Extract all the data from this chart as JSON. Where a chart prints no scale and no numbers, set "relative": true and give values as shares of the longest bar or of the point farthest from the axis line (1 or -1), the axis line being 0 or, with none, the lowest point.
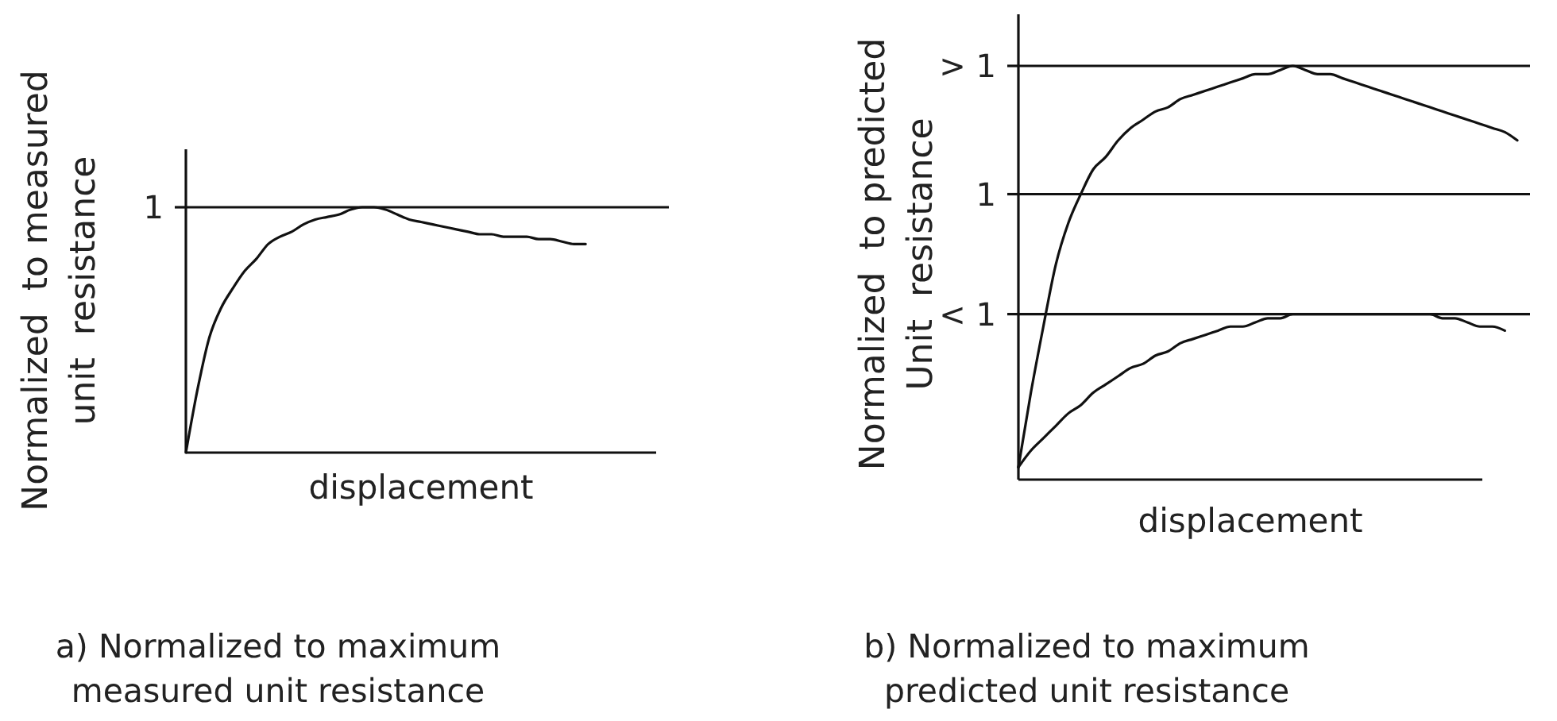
{
  "chart_data": [
    {
      "type": "line",
      "relative": true,
      "xlabel": "displacement",
      "ylabel": "Normalized  to measured\nunit  resistance",
      "categories": [
        null,
        null,
        null,
        null,
        null,
        null,
        null,
        null,
        null,
        null,
        null,
        null,
        null,
        null,
        null,
        null,
        null,
        null,
        null,
        null,
        null,
        null,
        null,
        null,
        null,
        null,
        null,
        null,
        null,
        null,
        null,
        null,
        null,
        null,
        null,
        null,
        null,
        null,
        null,
        null,
        null
      ],
      "series": [
        {
          "color": "#111111",
          "values": [
            0,
            0.26,
            0.47,
            0.59,
            0.67,
            0.74,
            0.79,
            0.85,
            0.88,
            0.9,
            0.93,
            0.95,
            0.96,
            0.97,
            0.99,
            1,
            1,
            0.99,
            0.97,
            0.95,
            0.94,
            0.93,
            0.92,
            0.91,
            0.9,
            0.89,
            0.89,
            0.88,
            0.88,
            0.88,
            0.87,
            0.87,
            0.86,
            0.85,
            0.85,
            null,
            null,
            null,
            null,
            null,
            null
          ]
        }
      ],
      "ref_lines": [
        {
          "axis": "y",
          "value": 1,
          "label": "1",
          "color": "#111111"
        }
      ],
      "annotations": [
        "a) Normalized to maximum\nmeasured unit resistance"
      ]
    },
    {
      "type": "line",
      "relative": true,
      "xlabel": "displacement",
      "ylabel": "Normalized  to predicted\nUnit  resistance",
      "categories": [
        null,
        null,
        null,
        null,
        null,
        null,
        null,
        null,
        null,
        null,
        null,
        null,
        null,
        null,
        null,
        null,
        null,
        null,
        null,
        null,
        null,
        null,
        null,
        null,
        null,
        null,
        null,
        null,
        null,
        null,
        null,
        null,
        null,
        null,
        null,
        null,
        null,
        null,
        null,
        null,
        null
      ],
      "series": [
        {
          "color": "#111111",
          "values": [
            0.03,
            0.21,
            0.37,
            0.52,
            0.62,
            0.69,
            0.75,
            0.78,
            0.82,
            0.85,
            0.87,
            0.89,
            0.9,
            0.92,
            0.93,
            0.94,
            0.95,
            0.96,
            0.97,
            0.98,
            0.98,
            0.99,
            1,
            0.99,
            0.98,
            0.98,
            0.97,
            0.96,
            0.95,
            0.94,
            0.93,
            0.92,
            0.91,
            0.9,
            0.89,
            0.88,
            0.87,
            0.86,
            0.85,
            0.84,
            0.82
          ]
        },
        {
          "color": "#111111",
          "values": [
            0.03,
            0.07,
            0.1,
            0.13,
            0.16,
            0.18,
            0.21,
            0.23,
            0.25,
            0.27,
            0.28,
            0.3,
            0.31,
            0.33,
            0.34,
            0.35,
            0.36,
            0.37,
            0.37,
            0.38,
            0.39,
            0.39,
            0.4,
            0.4,
            0.4,
            0.4,
            0.4,
            0.4,
            0.4,
            0.4,
            0.4,
            0.4,
            0.4,
            0.4,
            0.39,
            0.39,
            0.38,
            0.37,
            0.37,
            0.36,
            null
          ]
        }
      ],
      "ref_lines": [
        {
          "axis": "y",
          "value": 1,
          "color": "#111111"
        },
        {
          "axis": "y",
          "value": 0.69,
          "color": "#111111"
        },
        {
          "axis": "y",
          "value": 0.4,
          "color": "#111111"
        }
      ],
      "annotations": [
        "> 1",
        "1",
        "< 1",
        "b) Normalized to maximum\npredicted unit resistance"
      ]
    }
  ]
}
